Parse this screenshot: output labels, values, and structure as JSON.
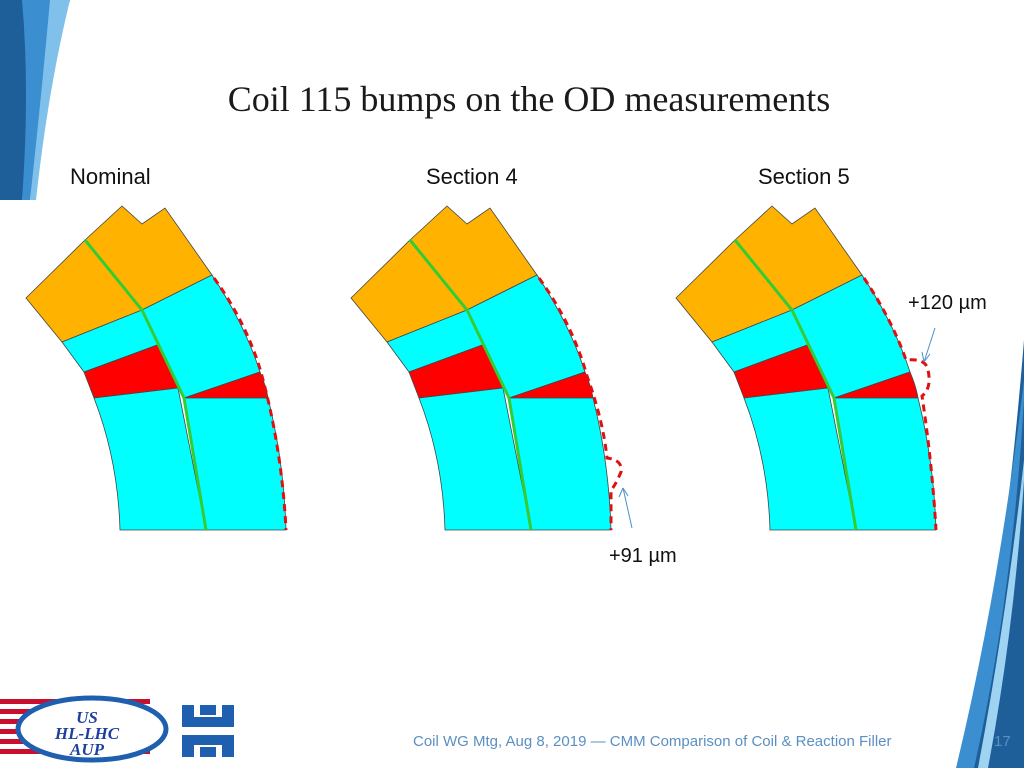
{
  "slide": {
    "title": "Coil 115 bumps on the OD measurements",
    "footer": "Coil WG Mtg, Aug 8, 2019 — CMM Comparison of Coil & Reaction Filler",
    "page_number": "17"
  },
  "panels": [
    {
      "label": "Nominal"
    },
    {
      "label": "Section 4",
      "annotation": "+91 µm"
    },
    {
      "label": "Section 5",
      "annotation": "+120 µm"
    }
  ],
  "colors": {
    "pole_block": "#FFB300",
    "conductor_block": "#00FFFF",
    "wedge": "#FF0000",
    "midplane_insulation": "#33CC33",
    "od_trace": "#E01010",
    "accent_blue": "#1a6fa8"
  },
  "logos": {
    "us_hl_lhc_aup": [
      "US",
      "HL-LHC",
      "AUP"
    ]
  }
}
